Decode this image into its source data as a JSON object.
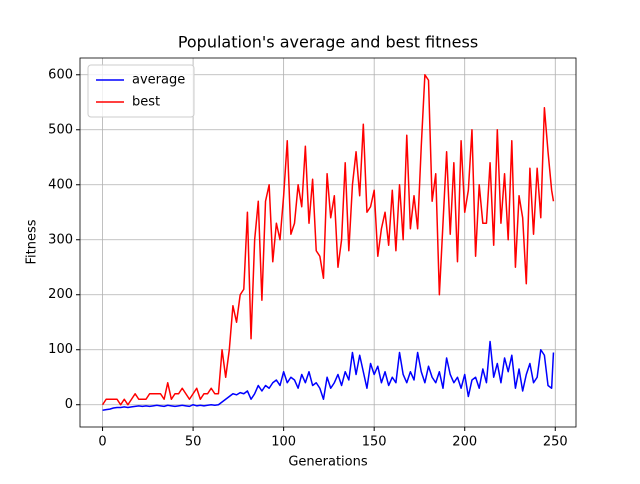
{
  "chart_data": {
    "type": "line",
    "title": "Population's average and best fitness",
    "xlabel": "Generations",
    "ylabel": "Fitness",
    "x": [
      0,
      2,
      4,
      6,
      8,
      10,
      12,
      14,
      16,
      18,
      20,
      22,
      24,
      26,
      28,
      30,
      32,
      34,
      36,
      38,
      40,
      42,
      44,
      46,
      48,
      50,
      52,
      54,
      56,
      58,
      60,
      62,
      64,
      66,
      68,
      70,
      72,
      74,
      76,
      78,
      80,
      82,
      84,
      86,
      88,
      90,
      92,
      94,
      96,
      98,
      100,
      102,
      104,
      106,
      108,
      110,
      112,
      114,
      116,
      118,
      120,
      122,
      124,
      126,
      128,
      130,
      132,
      134,
      136,
      138,
      140,
      142,
      144,
      146,
      148,
      150,
      152,
      154,
      156,
      158,
      160,
      162,
      164,
      166,
      168,
      170,
      172,
      174,
      176,
      178,
      180,
      182,
      184,
      186,
      188,
      190,
      192,
      194,
      196,
      198,
      200,
      202,
      204,
      206,
      208,
      210,
      212,
      214,
      216,
      218,
      220,
      222,
      224,
      226,
      228,
      230,
      232,
      234,
      236,
      238,
      240,
      242,
      244,
      246,
      248,
      249
    ],
    "series": [
      {
        "name": "average",
        "color": "#0000ff",
        "values": [
          -10,
          -9,
          -8,
          -6,
          -5,
          -5,
          -4,
          -5,
          -4,
          -3,
          -2,
          -3,
          -2,
          -3,
          -2,
          -1,
          -2,
          -3,
          -1,
          -2,
          -3,
          -2,
          -1,
          -2,
          -3,
          0,
          -2,
          -1,
          -2,
          -1,
          0,
          -1,
          0,
          5,
          10,
          15,
          20,
          18,
          22,
          20,
          25,
          10,
          20,
          35,
          25,
          35,
          30,
          40,
          45,
          35,
          60,
          40,
          50,
          45,
          30,
          55,
          40,
          60,
          35,
          40,
          30,
          10,
          50,
          30,
          40,
          55,
          35,
          60,
          45,
          95,
          55,
          90,
          60,
          30,
          75,
          55,
          70,
          40,
          60,
          35,
          50,
          40,
          95,
          55,
          40,
          60,
          45,
          95,
          60,
          40,
          70,
          50,
          40,
          60,
          30,
          85,
          55,
          40,
          50,
          30,
          55,
          15,
          45,
          50,
          30,
          65,
          40,
          115,
          50,
          75,
          40,
          85,
          60,
          90,
          30,
          65,
          25,
          55,
          75,
          40,
          50,
          100,
          90,
          35,
          30,
          95
        ]
      },
      {
        "name": "best",
        "color": "#ff0000",
        "values": [
          0,
          10,
          10,
          10,
          10,
          0,
          10,
          0,
          10,
          20,
          10,
          10,
          10,
          20,
          20,
          20,
          20,
          10,
          40,
          10,
          20,
          20,
          30,
          20,
          10,
          20,
          30,
          10,
          20,
          20,
          30,
          20,
          20,
          100,
          50,
          100,
          180,
          150,
          200,
          210,
          350,
          120,
          300,
          370,
          190,
          370,
          400,
          260,
          330,
          300,
          380,
          480,
          310,
          330,
          400,
          360,
          470,
          330,
          410,
          280,
          270,
          230,
          420,
          340,
          380,
          250,
          300,
          440,
          280,
          400,
          460,
          380,
          510,
          350,
          360,
          390,
          270,
          320,
          350,
          290,
          390,
          280,
          400,
          300,
          490,
          320,
          380,
          320,
          470,
          600,
          590,
          370,
          420,
          200,
          330,
          460,
          310,
          440,
          260,
          480,
          350,
          390,
          500,
          270,
          400,
          330,
          330,
          440,
          290,
          500,
          330,
          420,
          300,
          480,
          250,
          380,
          340,
          220,
          430,
          310,
          430,
          340,
          540,
          460,
          390,
          370
        ]
      }
    ],
    "xlim": [
      -12.45,
      261.45
    ],
    "xticks": [
      0,
      50,
      100,
      150,
      200,
      250
    ],
    "ylim": [
      -40.5,
      630.5
    ],
    "yticks": [
      0,
      100,
      200,
      300,
      400,
      500,
      600
    ],
    "grid": true,
    "legend": "upper left"
  }
}
